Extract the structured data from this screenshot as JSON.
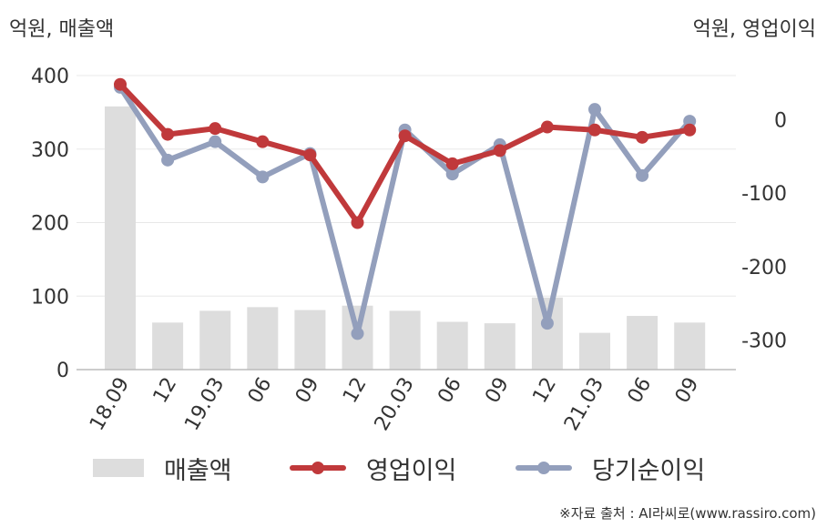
{
  "chart_data": {
    "type": "bar+line",
    "units": {
      "left": "억원, 매출액",
      "right": "억원, 영업이익"
    },
    "categories": [
      "18.09",
      "12",
      "19.03",
      "06",
      "09",
      "12",
      "20.03",
      "06",
      "09",
      "12",
      "21.03",
      "06",
      "09"
    ],
    "left_axis": {
      "ylim": [
        0,
        400
      ],
      "ticks": [
        0,
        100,
        200,
        300,
        400
      ]
    },
    "right_axis": {
      "ylim": [
        -340,
        60
      ],
      "ticks": [
        0,
        -100,
        -200,
        -300
      ]
    },
    "series": [
      {
        "name": "매출액",
        "type": "bar",
        "axis": "left",
        "color": "#dddddd",
        "values": [
          358,
          64,
          80,
          85,
          81,
          87,
          80,
          65,
          63,
          98,
          50,
          73,
          64
        ]
      },
      {
        "name": "영업이익",
        "type": "line",
        "axis": "right",
        "color": "#c0393b",
        "values": [
          48,
          -20,
          -12,
          -30,
          -48,
          -140,
          -22,
          -60,
          -42,
          -10,
          -14,
          -24,
          -14
        ]
      },
      {
        "name": "당기순이익",
        "type": "line",
        "axis": "right",
        "color": "#939fbc",
        "values": [
          44,
          -55,
          -30,
          -78,
          -46,
          -291,
          -14,
          -74,
          -34,
          -277,
          14,
          -76,
          -2
        ]
      }
    ],
    "grid": true,
    "legend": "bottom"
  },
  "source": "※자료 출처 : AI라씨로(www.rassiro.com)"
}
